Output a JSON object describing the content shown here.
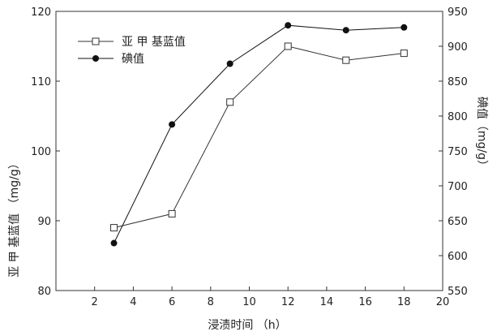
{
  "chart_data": {
    "type": "line",
    "xlabel": "浸渍时间 （h）",
    "ylabel_left": "亚 甲 基蓝值 （mg/g）",
    "ylabel_right": "碘值（mg/g）",
    "xlim": [
      0,
      20
    ],
    "ylim_left": [
      80,
      120
    ],
    "ylim_right": [
      550,
      950
    ],
    "x_ticks": [
      2,
      4,
      6,
      8,
      10,
      12,
      14,
      16,
      18,
      20
    ],
    "y_ticks_left": [
      80,
      90,
      100,
      110,
      120
    ],
    "y_ticks_right": [
      550,
      600,
      650,
      700,
      750,
      800,
      850,
      900,
      950
    ],
    "legend_position": "top-left",
    "grid": false,
    "series": [
      {
        "name": "亚 甲 基蓝值",
        "axis": "left",
        "marker": "open-square",
        "color": "#333333",
        "x": [
          3,
          6,
          9,
          12,
          15,
          18
        ],
        "values": [
          89,
          91,
          107,
          115,
          113,
          114
        ]
      },
      {
        "name": "碘值",
        "axis": "right",
        "marker": "filled-circle",
        "color": "#111111",
        "x": [
          3,
          6,
          9,
          12,
          15,
          18
        ],
        "values": [
          618,
          788,
          875,
          930,
          923,
          927
        ]
      }
    ]
  }
}
